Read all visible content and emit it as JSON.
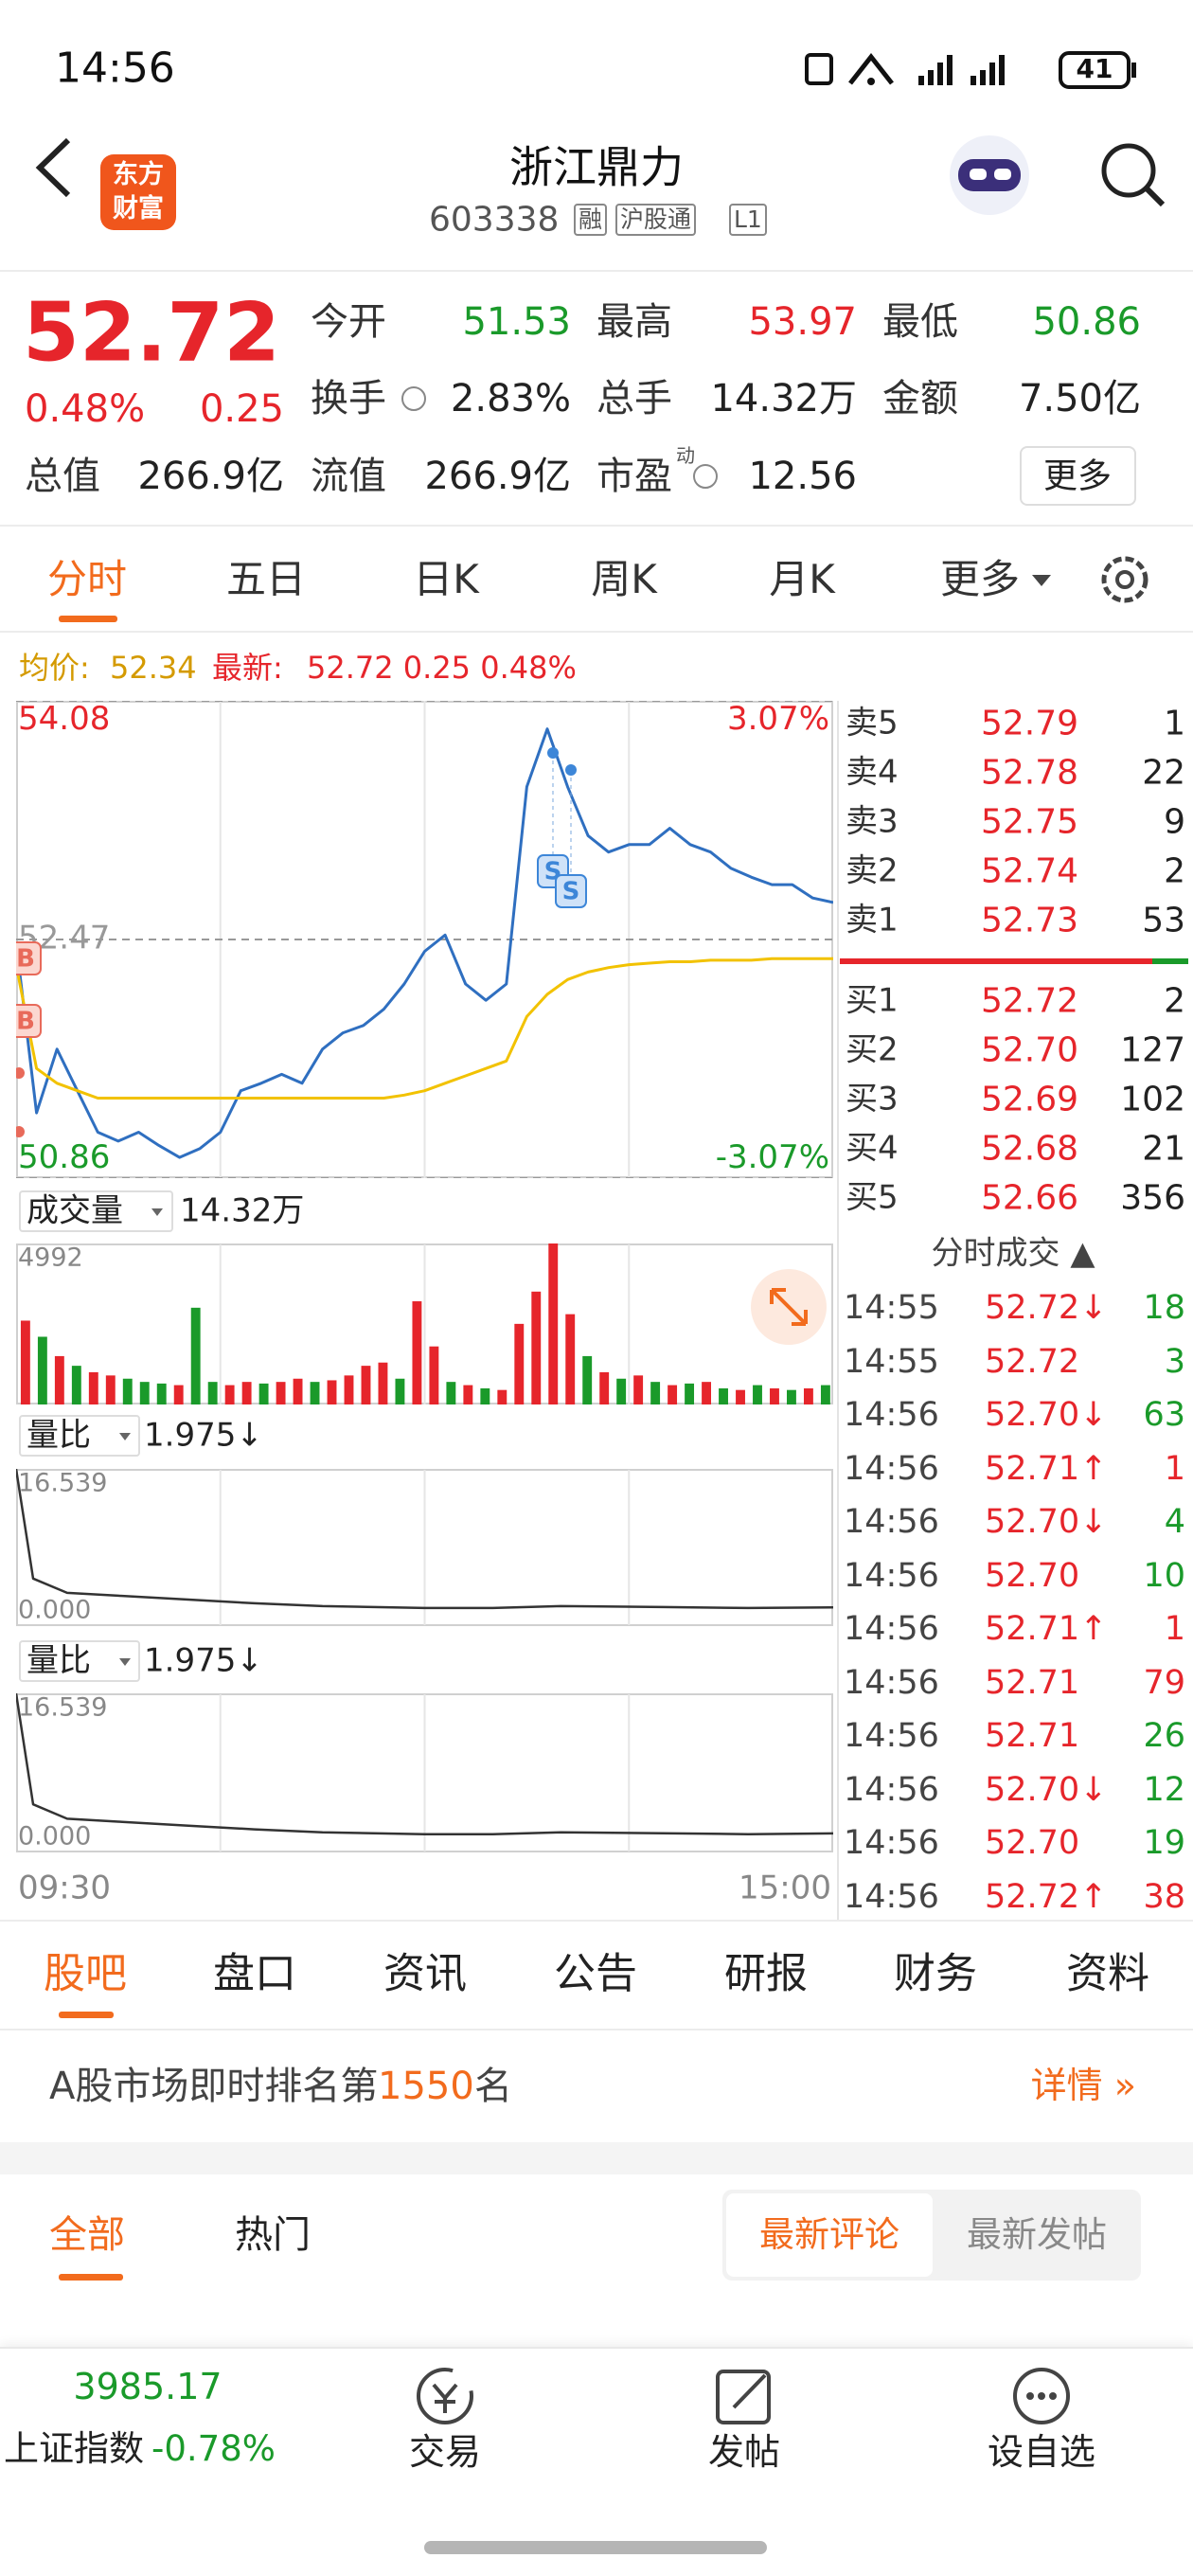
{
  "status_bar": {
    "time": "14:56",
    "battery": "41"
  },
  "header": {
    "logo": [
      "东方",
      "财富"
    ],
    "title": "浙江鼎力",
    "code": "603338",
    "tags": [
      "融",
      "沪股通",
      "L1"
    ]
  },
  "quote": {
    "price": "52.72",
    "change_pct": "0.48%",
    "change": "0.25",
    "fields": [
      {
        "label": "今开",
        "value": "51.53",
        "color": "#1a9a2a"
      },
      {
        "label": "最高",
        "value": "53.97",
        "color": "#e6252b"
      },
      {
        "label": "最低",
        "value": "50.86",
        "color": "#1a9a2a"
      },
      {
        "label": "换手",
        "value": "2.83%",
        "color": "#222222"
      },
      {
        "label": "总手",
        "value": "14.32万",
        "color": "#222222"
      },
      {
        "label": "金额",
        "value": "7.50亿",
        "color": "#222222"
      },
      {
        "label": "总值",
        "value": "266.9亿",
        "color": "#222222"
      },
      {
        "label": "流值",
        "value": "266.9亿",
        "color": "#222222"
      },
      {
        "label": "市盈",
        "sup": "动",
        "value": "12.56",
        "color": "#222222"
      }
    ],
    "more": "更多"
  },
  "tabs": [
    "分时",
    "五日",
    "日K",
    "周K",
    "月K",
    "更多"
  ],
  "chart_info": {
    "avg_label": "均价:",
    "avg_value": "52.34",
    "latest_label": "最新:",
    "latest_value": "52.72 0.25 0.48%"
  },
  "chart_markers": [
    "B",
    "B",
    "S",
    "S"
  ],
  "chart_data": [
    {
      "type": "line",
      "x": [
        0,
        6,
        12,
        18,
        24,
        30,
        36,
        42,
        48,
        54,
        60,
        66,
        72,
        78,
        84,
        90,
        96,
        102,
        108,
        114,
        120,
        126,
        132,
        138,
        144,
        150,
        156,
        162,
        168,
        174,
        180,
        186,
        192,
        198,
        204,
        210,
        216,
        222,
        228,
        234,
        240
      ],
      "series": [
        {
          "name": "最新",
          "color": "#2f6fc0",
          "values": [
            52.45,
            51.3,
            51.73,
            51.45,
            51.17,
            51.11,
            51.17,
            51.08,
            51.0,
            51.06,
            51.17,
            51.45,
            51.5,
            51.56,
            51.5,
            51.73,
            51.84,
            51.89,
            52.0,
            52.17,
            52.39,
            52.5,
            52.17,
            52.06,
            52.17,
            53.5,
            53.89,
            53.5,
            53.17,
            53.06,
            53.11,
            53.11,
            53.22,
            53.11,
            53.06,
            52.95,
            52.89,
            52.84,
            52.84,
            52.75,
            52.72
          ]
        },
        {
          "name": "均价",
          "color": "#f2c200",
          "values": [
            52.3,
            51.6,
            51.5,
            51.45,
            51.4,
            51.4,
            51.4,
            51.4,
            51.4,
            51.4,
            51.4,
            51.4,
            51.4,
            51.4,
            51.4,
            51.4,
            51.4,
            51.4,
            51.4,
            51.42,
            51.45,
            51.5,
            51.55,
            51.6,
            51.65,
            51.95,
            52.1,
            52.2,
            52.25,
            52.28,
            52.3,
            52.31,
            52.32,
            52.32,
            52.33,
            52.33,
            52.33,
            52.34,
            52.34,
            52.34,
            52.34
          ]
        }
      ],
      "xlim": [
        0,
        240
      ],
      "ylim": [
        50.86,
        54.08
      ],
      "yticks": [
        50.86,
        52.47,
        54.08
      ],
      "ytick_colors": [
        "#1a9a2a",
        "#999999",
        "#e6252b"
      ],
      "y2lim": [
        -3.07,
        3.07
      ],
      "y2ticks": [
        {
          "value": -3.07,
          "label": "-3.07%"
        },
        {
          "value": 3.07,
          "label": "3.07%"
        }
      ],
      "y2tick_colors": [
        "#1a9a2a",
        "#e6252b"
      ],
      "grid_style": "dashed"
    },
    {
      "type": "bar",
      "title": "成交量",
      "total": "14.32万",
      "x": [
        0,
        5,
        10,
        15,
        20,
        25,
        30,
        35,
        40,
        45,
        50,
        55,
        60,
        65,
        70,
        75,
        80,
        85,
        90,
        95,
        100,
        105,
        110,
        115,
        120,
        125,
        130,
        135,
        140,
        145,
        150,
        155,
        160,
        165,
        170,
        175,
        180,
        185,
        190,
        195,
        200,
        205,
        210,
        215,
        220,
        225,
        230,
        235
      ],
      "values": [
        2600,
        2100,
        1500,
        1200,
        1000,
        900,
        800,
        700,
        650,
        600,
        3000,
        700,
        600,
        700,
        650,
        700,
        800,
        700,
        750,
        900,
        1200,
        1300,
        800,
        3200,
        1800,
        700,
        600,
        500,
        450,
        2500,
        3500,
        4992,
        2800,
        1500,
        1000,
        800,
        900,
        700,
        600,
        650,
        700,
        500,
        450,
        600,
        500,
        450,
        500,
        600
      ],
      "colors": [
        "#e6252b",
        "#1a9a2a",
        "#e6252b",
        "#1a9a2a",
        "#e6252b",
        "#e6252b",
        "#1a9a2a",
        "#1a9a2a",
        "#1a9a2a",
        "#e6252b",
        "#1a9a2a",
        "#1a9a2a",
        "#e6252b",
        "#e6252b",
        "#1a9a2a",
        "#e6252b",
        "#e6252b",
        "#1a9a2a",
        "#e6252b",
        "#e6252b",
        "#e6252b",
        "#e6252b",
        "#1a9a2a",
        "#e6252b",
        "#e6252b",
        "#1a9a2a",
        "#e6252b",
        "#1a9a2a",
        "#e6252b",
        "#e6252b",
        "#e6252b",
        "#e6252b",
        "#e6252b",
        "#1a9a2a",
        "#e6252b",
        "#1a9a2a",
        "#e6252b",
        "#1a9a2a",
        "#e6252b",
        "#1a9a2a",
        "#e6252b",
        "#1a9a2a",
        "#e6252b",
        "#1a9a2a",
        "#e6252b",
        "#1a9a2a",
        "#e6252b",
        "#1a9a2a"
      ],
      "xlim": [
        0,
        240
      ],
      "ylim": [
        0,
        4992
      ],
      "yticks": [
        4992
      ],
      "grid_style": "solid"
    },
    {
      "type": "line",
      "title": "量比",
      "current": "1.975↓",
      "x": [
        0,
        5,
        15,
        30,
        50,
        70,
        90,
        120,
        140,
        160,
        190,
        215,
        240
      ],
      "series": [
        {
          "color": "#333333",
          "values": [
            16.539,
            5.0,
            3.5,
            3.2,
            2.8,
            2.4,
            2.1,
            1.9,
            1.9,
            2.1,
            2.0,
            1.9,
            1.975
          ]
        }
      ],
      "xlim": [
        0,
        240
      ],
      "ylim": [
        0,
        16.539
      ],
      "yticks": [
        {
          "value": 0,
          "label": "0.000"
        },
        16.539
      ],
      "grid_style": "solid"
    },
    {
      "type": "line",
      "title": "量比",
      "current": "1.975↓",
      "x": [
        0,
        5,
        15,
        30,
        50,
        70,
        90,
        120,
        140,
        160,
        190,
        215,
        240
      ],
      "series": [
        {
          "color": "#333333",
          "values": [
            16.539,
            5.0,
            3.5,
            3.2,
            2.8,
            2.4,
            2.1,
            1.9,
            1.9,
            2.1,
            2.0,
            1.9,
            1.975
          ]
        }
      ],
      "xlim": [
        0,
        240
      ],
      "ylim": [
        0,
        16.539
      ],
      "yticks": [
        {
          "value": 0,
          "label": "0.000"
        },
        16.539
      ],
      "xticks": [
        {
          "value": 0,
          "label": "09:30"
        },
        {
          "value": 240,
          "label": "15:00"
        }
      ],
      "grid_style": "solid"
    }
  ],
  "order_book": {
    "asks": [
      {
        "label": "卖5",
        "price": "52.79",
        "volume": "1"
      },
      {
        "label": "卖4",
        "price": "52.78",
        "volume": "22"
      },
      {
        "label": "卖3",
        "price": "52.75",
        "volume": "9"
      },
      {
        "label": "卖2",
        "price": "52.74",
        "volume": "2"
      },
      {
        "label": "卖1",
        "price": "52.73",
        "volume": "53"
      }
    ],
    "bids": [
      {
        "label": "买1",
        "price": "52.72",
        "volume": "2"
      },
      {
        "label": "买2",
        "price": "52.70",
        "volume": "127"
      },
      {
        "label": "买3",
        "price": "52.69",
        "volume": "102"
      },
      {
        "label": "买4",
        "price": "52.68",
        "volume": "21"
      },
      {
        "label": "买5",
        "price": "52.66",
        "volume": "356"
      }
    ]
  },
  "trades": {
    "title": "分时成交 ▲",
    "rows": [
      {
        "time": "14:55",
        "price": "52.72↓",
        "volume": "18",
        "color": "#1a9a2a"
      },
      {
        "time": "14:55",
        "price": "52.72",
        "volume": "3",
        "color": "#1a9a2a"
      },
      {
        "time": "14:56",
        "price": "52.70↓",
        "volume": "63",
        "color": "#1a9a2a"
      },
      {
        "time": "14:56",
        "price": "52.71↑",
        "volume": "1",
        "color": "#e6252b"
      },
      {
        "time": "14:56",
        "price": "52.70↓",
        "volume": "4",
        "color": "#1a9a2a"
      },
      {
        "time": "14:56",
        "price": "52.70",
        "volume": "10",
        "color": "#1a9a2a"
      },
      {
        "time": "14:56",
        "price": "52.71↑",
        "volume": "1",
        "color": "#e6252b"
      },
      {
        "time": "14:56",
        "price": "52.71",
        "volume": "79",
        "color": "#e6252b"
      },
      {
        "time": "14:56",
        "price": "52.71",
        "volume": "26",
        "color": "#1a9a2a"
      },
      {
        "time": "14:56",
        "price": "52.70↓",
        "volume": "12",
        "color": "#1a9a2a"
      },
      {
        "time": "14:56",
        "price": "52.70",
        "volume": "19",
        "color": "#1a9a2a"
      },
      {
        "time": "14:56",
        "price": "52.72↑",
        "volume": "38",
        "color": "#e6252b"
      }
    ]
  },
  "bottom_tabs": [
    "股吧",
    "盘口",
    "资讯",
    "公告",
    "研报",
    "财务",
    "资料"
  ],
  "rank": {
    "prefix": "A股市场即时排名第",
    "number": "1550",
    "suffix": "名",
    "detail": "详情 »"
  },
  "feed_tabs": {
    "left": [
      "全部",
      "热门"
    ],
    "right": [
      "最新评论",
      "最新发帖"
    ]
  },
  "bottom_bar": {
    "index_value": "3985.17",
    "index_name": "上证指数",
    "index_change": "-0.78%",
    "actions": [
      "交易",
      "发帖",
      "设自选"
    ]
  }
}
